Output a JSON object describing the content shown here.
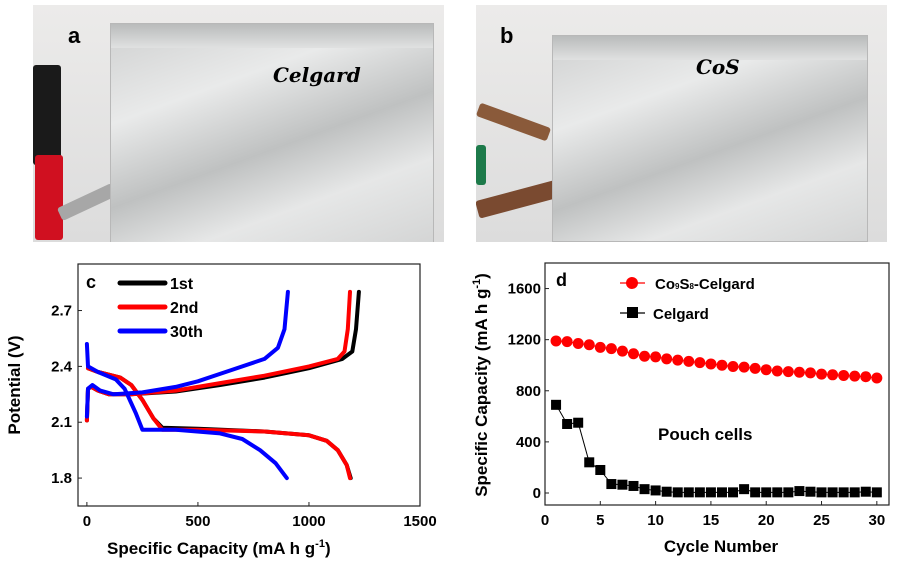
{
  "panels": {
    "a": {
      "letter": "a",
      "label_on_pouch": "Celgard"
    },
    "b": {
      "letter": "b",
      "label_on_pouch": "CoS"
    }
  },
  "chart_data": [
    {
      "panel": "c",
      "type": "line",
      "xlabel": "Specific Capacity (mA h g",
      "xlabel_sup": "-1",
      "xlabel_end": ")",
      "ylabel": "Potential  (V)",
      "xlim": [
        -40,
        1500
      ],
      "ylim": [
        1.65,
        2.95
      ],
      "xticks": [
        0,
        500,
        1000,
        1500
      ],
      "yticks": [
        1.8,
        2.1,
        2.4,
        2.7
      ],
      "legend_position": "top-left",
      "series": [
        {
          "name": "1st",
          "color": "#000000",
          "discharge": [
            [
              5,
              2.39
            ],
            [
              50,
              2.37
            ],
            [
              150,
              2.34
            ],
            [
              200,
              2.3
            ],
            [
              250,
              2.22
            ],
            [
              300,
              2.12
            ],
            [
              340,
              2.07
            ],
            [
              500,
              2.065
            ],
            [
              800,
              2.05
            ],
            [
              1000,
              2.03
            ],
            [
              1080,
              2.0
            ],
            [
              1130,
              1.95
            ],
            [
              1170,
              1.87
            ],
            [
              1188,
              1.8
            ]
          ],
          "charge": [
            [
              0,
              2.11
            ],
            [
              5,
              2.28
            ],
            [
              20,
              2.29
            ],
            [
              50,
              2.27
            ],
            [
              100,
              2.25
            ],
            [
              200,
              2.25
            ],
            [
              400,
              2.265
            ],
            [
              600,
              2.3
            ],
            [
              800,
              2.34
            ],
            [
              1000,
              2.39
            ],
            [
              1150,
              2.44
            ],
            [
              1195,
              2.48
            ],
            [
              1212,
              2.6
            ],
            [
              1225,
              2.8
            ]
          ]
        },
        {
          "name": "2nd",
          "color": "#ff0000",
          "discharge": [
            [
              5,
              2.39
            ],
            [
              50,
              2.37
            ],
            [
              150,
              2.34
            ],
            [
              200,
              2.3
            ],
            [
              250,
              2.22
            ],
            [
              300,
              2.12
            ],
            [
              340,
              2.06
            ],
            [
              500,
              2.06
            ],
            [
              800,
              2.05
            ],
            [
              1000,
              2.03
            ],
            [
              1080,
              2.0
            ],
            [
              1130,
              1.95
            ],
            [
              1170,
              1.87
            ],
            [
              1185,
              1.8
            ]
          ],
          "charge": [
            [
              0,
              2.11
            ],
            [
              5,
              2.28
            ],
            [
              20,
              2.29
            ],
            [
              50,
              2.27
            ],
            [
              100,
              2.25
            ],
            [
              200,
              2.25
            ],
            [
              400,
              2.27
            ],
            [
              600,
              2.31
            ],
            [
              800,
              2.35
            ],
            [
              1000,
              2.4
            ],
            [
              1130,
              2.44
            ],
            [
              1160,
              2.48
            ],
            [
              1175,
              2.6
            ],
            [
              1185,
              2.8
            ]
          ]
        },
        {
          "name": "30th",
          "color": "#0000ff",
          "discharge": [
            [
              0,
              2.52
            ],
            [
              5,
              2.4
            ],
            [
              50,
              2.37
            ],
            [
              130,
              2.33
            ],
            [
              170,
              2.28
            ],
            [
              220,
              2.15
            ],
            [
              250,
              2.06
            ],
            [
              400,
              2.06
            ],
            [
              600,
              2.04
            ],
            [
              700,
              2.01
            ],
            [
              780,
              1.95
            ],
            [
              850,
              1.88
            ],
            [
              900,
              1.8
            ]
          ],
          "charge": [
            [
              0,
              2.13
            ],
            [
              5,
              2.28
            ],
            [
              25,
              2.3
            ],
            [
              60,
              2.27
            ],
            [
              120,
              2.25
            ],
            [
              250,
              2.26
            ],
            [
              400,
              2.29
            ],
            [
              500,
              2.32
            ],
            [
              650,
              2.38
            ],
            [
              800,
              2.44
            ],
            [
              860,
              2.5
            ],
            [
              890,
              2.6
            ],
            [
              905,
              2.8
            ]
          ]
        }
      ]
    },
    {
      "panel": "d",
      "type": "scatter",
      "xlabel": "Cycle Number",
      "ylabel": "Specific Capacity (mA h g",
      "ylabel_sup": "-1",
      "ylabel_end": ")",
      "annotation": "Pouch cells",
      "xlim": [
        0,
        31.1
      ],
      "ylim": [
        -94,
        1800
      ],
      "xticks": [
        0,
        5,
        10,
        15,
        20,
        25,
        30
      ],
      "yticks": [
        0,
        400,
        800,
        1200,
        1600
      ],
      "legend_position": "top",
      "x": [
        1,
        2,
        3,
        4,
        5,
        6,
        7,
        8,
        9,
        10,
        11,
        12,
        13,
        14,
        15,
        16,
        17,
        18,
        19,
        20,
        21,
        22,
        23,
        24,
        25,
        26,
        27,
        28,
        29,
        30
      ],
      "series": [
        {
          "name_main": "Co",
          "name_sub1": "9",
          "name_mid": "S",
          "name_sub2": "8",
          "name_end": "-Celgard",
          "marker": "circle",
          "color": "#ff0000",
          "values": [
            1190,
            1185,
            1170,
            1160,
            1140,
            1130,
            1110,
            1090,
            1070,
            1065,
            1050,
            1040,
            1030,
            1020,
            1010,
            1000,
            990,
            985,
            975,
            965,
            955,
            950,
            945,
            940,
            930,
            925,
            920,
            915,
            910,
            900
          ]
        },
        {
          "name": "Celgard",
          "marker": "square",
          "color": "#000000",
          "values": [
            690,
            540,
            550,
            240,
            180,
            70,
            65,
            55,
            30,
            20,
            10,
            5,
            5,
            5,
            5,
            5,
            5,
            30,
            5,
            5,
            5,
            5,
            15,
            10,
            5,
            5,
            5,
            5,
            10,
            5
          ]
        }
      ]
    }
  ]
}
